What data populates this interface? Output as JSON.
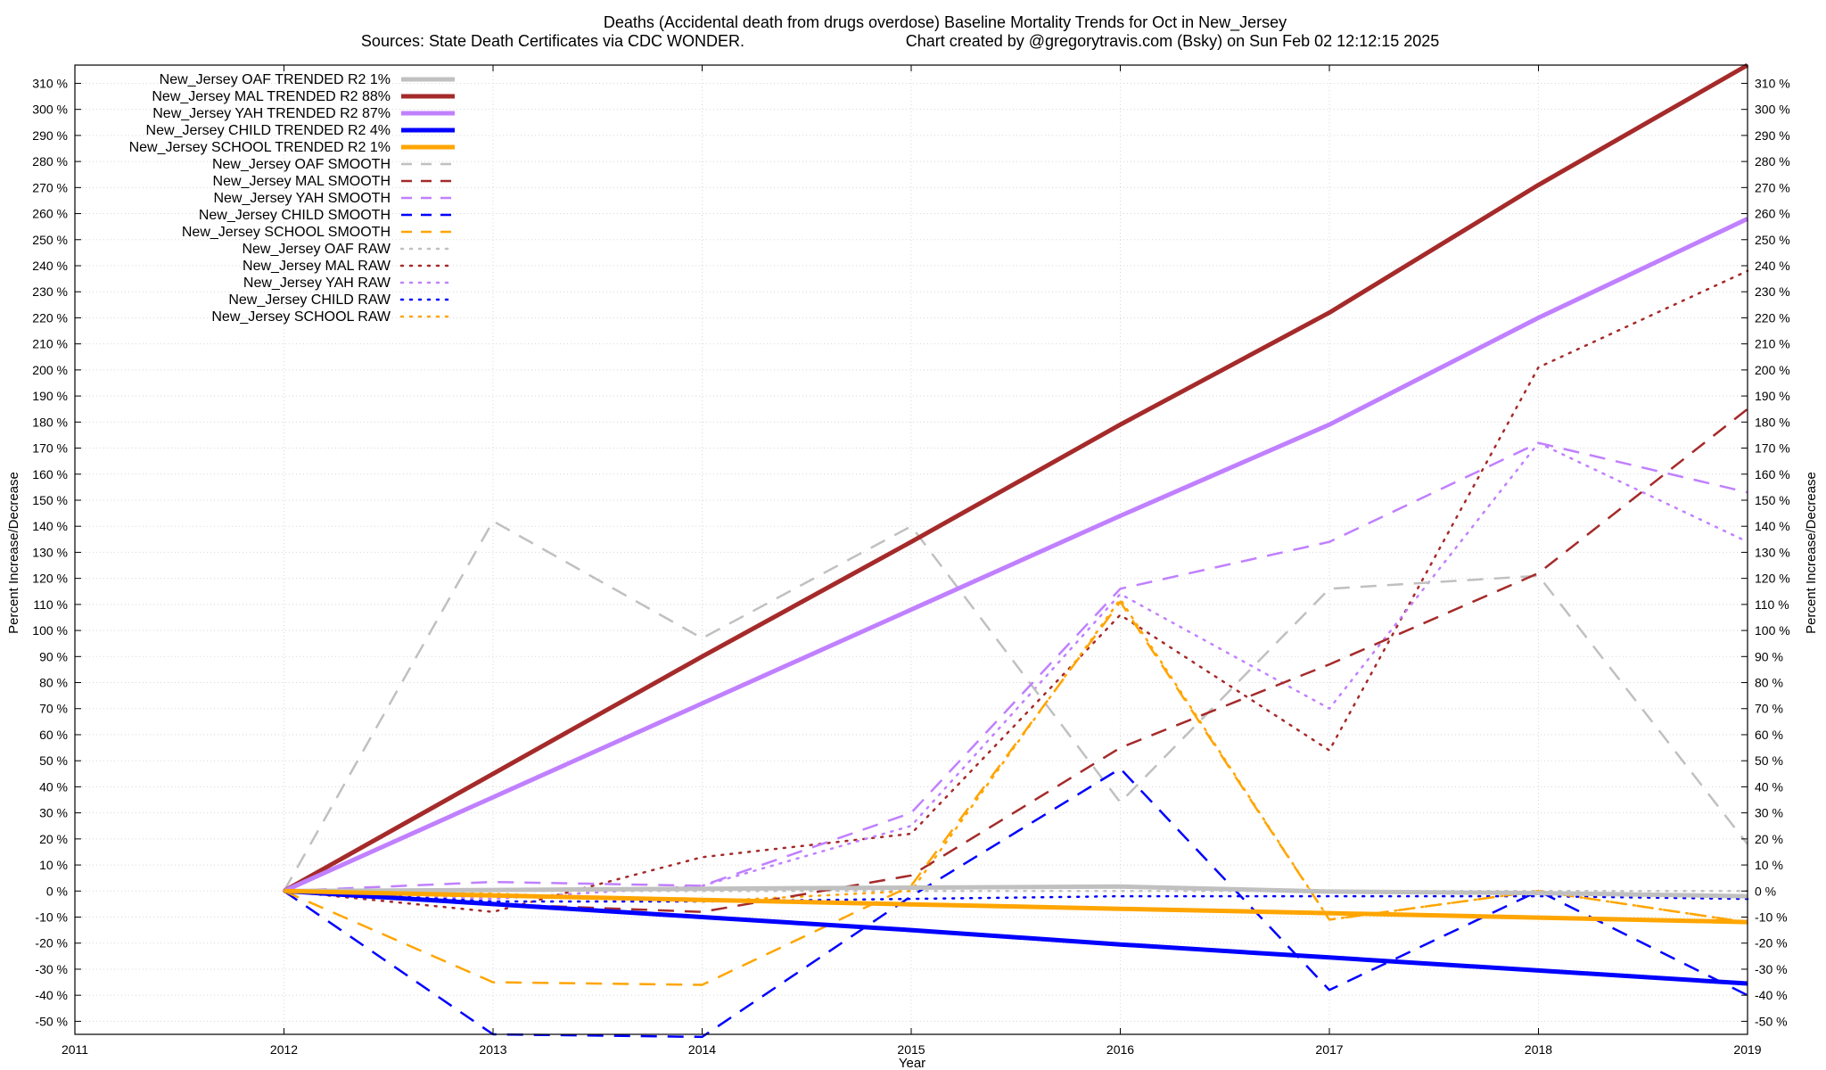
{
  "header": {
    "title": "Deaths (Accidental death from drugs overdose)  Baseline Mortality Trends for Oct in New_Jersey",
    "subtitle_sources": "Sources: State Death Certificates via CDC WONDER.",
    "subtitle_credit": "Chart created by @gregorytravis.com (Bsky) on Sun Feb 02 12:12:15 2025"
  },
  "chart_data": {
    "type": "line",
    "title": "Deaths (Accidental death from drugs overdose)  Baseline Mortality Trends for Oct in New_Jersey",
    "xlabel": "Year",
    "ylabel": "Percent Increase/Decrease",
    "ylabel_right": "Percent Increase/Decrease",
    "xlim": [
      2011,
      2019
    ],
    "ylim": [
      -55,
      317
    ],
    "x_ticks": [
      "2011",
      "2012",
      "2013",
      "2014",
      "2015",
      "2016",
      "2017",
      "2018",
      "2019"
    ],
    "y_ticks": [
      "-50 %",
      "-40 %",
      "-30 %",
      "-20 %",
      "-10 %",
      "0 %",
      "10 %",
      "20 %",
      "30 %",
      "40 %",
      "50 %",
      "60 %",
      "70 %",
      "80 %",
      "90 %",
      "100 %",
      "110 %",
      "120 %",
      "130 %",
      "140 %",
      "150 %",
      "160 %",
      "170 %",
      "180 %",
      "190 %",
      "200 %",
      "210 %",
      "220 %",
      "230 %",
      "240 %",
      "250 %",
      "260 %",
      "270 %",
      "280 %",
      "290 %",
      "300 %",
      "310 %"
    ],
    "grid": true,
    "legend_position": "top-left",
    "x": [
      2012,
      2013,
      2014,
      2015,
      2016,
      2017,
      2018,
      2019
    ],
    "series": [
      {
        "name": "New_Jersey OAF TRENDED R2  1%",
        "style": "solid",
        "color": "#c0c0c0",
        "values": [
          0,
          0.4,
          0.9,
          1.3,
          1.7,
          -0.2,
          -0.8,
          -2
        ]
      },
      {
        "name": "New_Jersey MAL TRENDED R2  88%",
        "style": "solid",
        "color": "#a52a2a",
        "values": [
          0,
          45,
          90,
          134,
          179,
          222,
          271,
          317
        ]
      },
      {
        "name": "New_Jersey YAH TRENDED R2  87%",
        "style": "solid",
        "color": "#c080ff",
        "values": [
          0,
          36,
          72,
          108,
          144,
          179,
          220,
          258
        ]
      },
      {
        "name": "New_Jersey CHILD TRENDED R2  4%",
        "style": "solid",
        "color": "#0000ff",
        "values": [
          0,
          -5,
          -10,
          -15,
          -20.5,
          -25.5,
          -30.5,
          -35.5
        ]
      },
      {
        "name": "New_Jersey SCHOOL TRENDED R2  1%",
        "style": "solid",
        "color": "#ffa500",
        "values": [
          0,
          -1.7,
          -3.4,
          -5.1,
          -6.8,
          -8.5,
          -10.2,
          -11.9
        ]
      },
      {
        "name": "New_Jersey OAF SMOOTH",
        "style": "dashed",
        "color": "#c0c0c0",
        "values": [
          0,
          142,
          97,
          140,
          34,
          116,
          121,
          18
        ]
      },
      {
        "name": "New_Jersey MAL SMOOTH",
        "style": "dashed",
        "color": "#a52a2a",
        "values": [
          0,
          -5,
          -8,
          6,
          55,
          87,
          122,
          185
        ]
      },
      {
        "name": "New_Jersey YAH SMOOTH",
        "style": "dashed",
        "color": "#c080ff",
        "values": [
          0,
          3.5,
          2,
          30,
          116,
          134,
          172,
          153
        ]
      },
      {
        "name": "New_Jersey CHILD SMOOTH",
        "style": "dashed",
        "color": "#0000ff",
        "values": [
          0,
          -55,
          -56,
          -2,
          47,
          -38,
          0,
          -40
        ]
      },
      {
        "name": "New_Jersey SCHOOL SMOOTH",
        "style": "dashed",
        "color": "#ffa500",
        "values": [
          0,
          -35,
          -36,
          2,
          111,
          -11,
          0,
          -12
        ]
      },
      {
        "name": "New_Jersey OAF RAW",
        "style": "dotted",
        "color": "#c0c0c0",
        "values": [
          0,
          0,
          0,
          0,
          0,
          0,
          0,
          0
        ]
      },
      {
        "name": "New_Jersey MAL RAW",
        "style": "dotted",
        "color": "#a52a2a",
        "values": [
          0,
          -8,
          13,
          22,
          106,
          54,
          201,
          238
        ]
      },
      {
        "name": "New_Jersey YAH RAW",
        "style": "dotted",
        "color": "#c080ff",
        "values": [
          0,
          -3,
          2,
          25,
          114,
          70,
          172,
          134
        ]
      },
      {
        "name": "New_Jersey CHILD RAW",
        "style": "dotted",
        "color": "#0000ff",
        "values": [
          0,
          -4,
          -4,
          -3,
          -2,
          -2,
          -2,
          -3
        ]
      },
      {
        "name": "New_Jersey SCHOOL RAW",
        "style": "dotted",
        "color": "#ffa500",
        "values": [
          0,
          -1,
          -4,
          0,
          112,
          -11,
          0,
          -12
        ]
      }
    ]
  }
}
